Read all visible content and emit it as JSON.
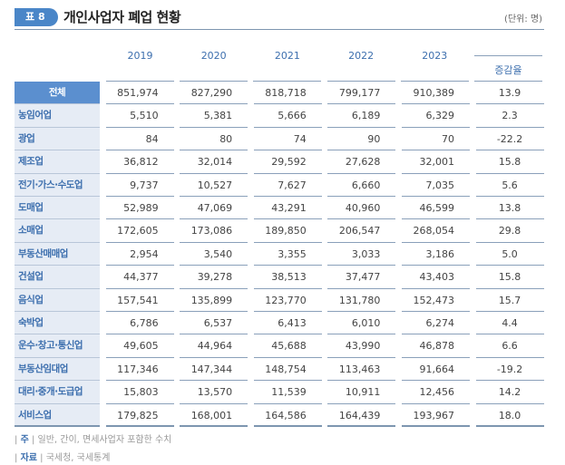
{
  "header": {
    "badge": "표 8",
    "title": "개인사업자 폐업 현황",
    "unit": "(단위: 명)"
  },
  "columns": [
    "2019",
    "2020",
    "2021",
    "2022",
    "2023",
    "증감율"
  ],
  "rows": [
    {
      "label": "전체",
      "values": [
        "851,974",
        "827,290",
        "818,718",
        "799,177",
        "910,389",
        "13.9"
      ]
    },
    {
      "label": "농임어업",
      "values": [
        "5,510",
        "5,381",
        "5,666",
        "6,189",
        "6,329",
        "2.3"
      ]
    },
    {
      "label": "광업",
      "values": [
        "84",
        "80",
        "74",
        "90",
        "70",
        "-22.2"
      ]
    },
    {
      "label": "제조업",
      "values": [
        "36,812",
        "32,014",
        "29,592",
        "27,628",
        "32,001",
        "15.8"
      ]
    },
    {
      "label": "전기·가스·수도업",
      "values": [
        "9,737",
        "10,527",
        "7,627",
        "6,660",
        "7,035",
        "5.6"
      ]
    },
    {
      "label": "도매업",
      "values": [
        "52,989",
        "47,069",
        "43,291",
        "40,960",
        "46,599",
        "13.8"
      ]
    },
    {
      "label": "소매업",
      "values": [
        "172,605",
        "173,086",
        "189,850",
        "206,547",
        "268,054",
        "29.8"
      ]
    },
    {
      "label": "부동산매매업",
      "values": [
        "2,954",
        "3,540",
        "3,355",
        "3,033",
        "3,186",
        "5.0"
      ]
    },
    {
      "label": "건설업",
      "values": [
        "44,377",
        "39,278",
        "38,513",
        "37,477",
        "43,403",
        "15.8"
      ]
    },
    {
      "label": "음식업",
      "values": [
        "157,541",
        "135,899",
        "123,770",
        "131,780",
        "152,473",
        "15.7"
      ]
    },
    {
      "label": "숙박업",
      "values": [
        "6,786",
        "6,537",
        "6,413",
        "6,010",
        "6,274",
        "4.4"
      ]
    },
    {
      "label": "운수·창고·통신업",
      "values": [
        "49,605",
        "44,964",
        "45,688",
        "43,990",
        "46,878",
        "6.6"
      ]
    },
    {
      "label": "부동산임대업",
      "values": [
        "117,346",
        "147,344",
        "148,754",
        "113,463",
        "91,664",
        "-19.2"
      ]
    },
    {
      "label": "대리·중개·도급업",
      "values": [
        "15,803",
        "13,570",
        "11,539",
        "10,911",
        "12,456",
        "14.2"
      ]
    },
    {
      "label": "서비스업",
      "values": [
        "179,825",
        "168,001",
        "164,586",
        "164,439",
        "193,967",
        "18.0"
      ]
    }
  ],
  "notes": {
    "note_label": "주",
    "note_text": "일반, 간이, 면세사업자 포함한 수치",
    "source_label": "자료",
    "source_text": "국세청, 국세통계"
  }
}
